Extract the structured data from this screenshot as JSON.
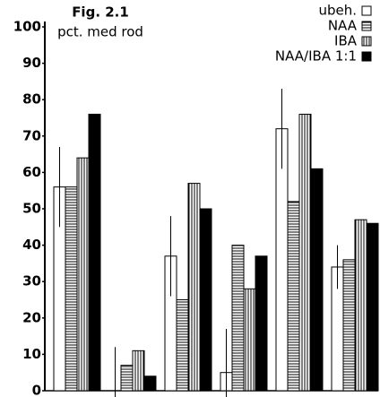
{
  "chart_data": {
    "type": "bar",
    "title": "Fig. 2.1",
    "subtitle": "pct. med rod",
    "categories": [
      null,
      null,
      null,
      null,
      null,
      null
    ],
    "series": [
      {
        "name": "ubeh.",
        "color": "#000000",
        "pattern": "none",
        "values": [
          56,
          0,
          37,
          5,
          72,
          34
        ],
        "errors": [
          11,
          12,
          11,
          12,
          11,
          6
        ]
      },
      {
        "name": "NAA",
        "color": "#000000",
        "pattern": "horizontal",
        "values": [
          56,
          7,
          25,
          40,
          52,
          36
        ]
      },
      {
        "name": "IBA",
        "color": "#000000",
        "pattern": "vertical",
        "values": [
          64,
          11,
          57,
          28,
          76,
          47
        ]
      },
      {
        "name": "NAA/IBA 1:1",
        "color": "#000000",
        "pattern": "solid",
        "values": [
          76,
          4,
          50,
          37,
          61,
          46
        ]
      }
    ],
    "ylim": [
      0,
      100
    ],
    "yticks": [
      0,
      10,
      20,
      30,
      40,
      50,
      60,
      70,
      80,
      90,
      100
    ],
    "grid": false,
    "legend": "top-right"
  }
}
